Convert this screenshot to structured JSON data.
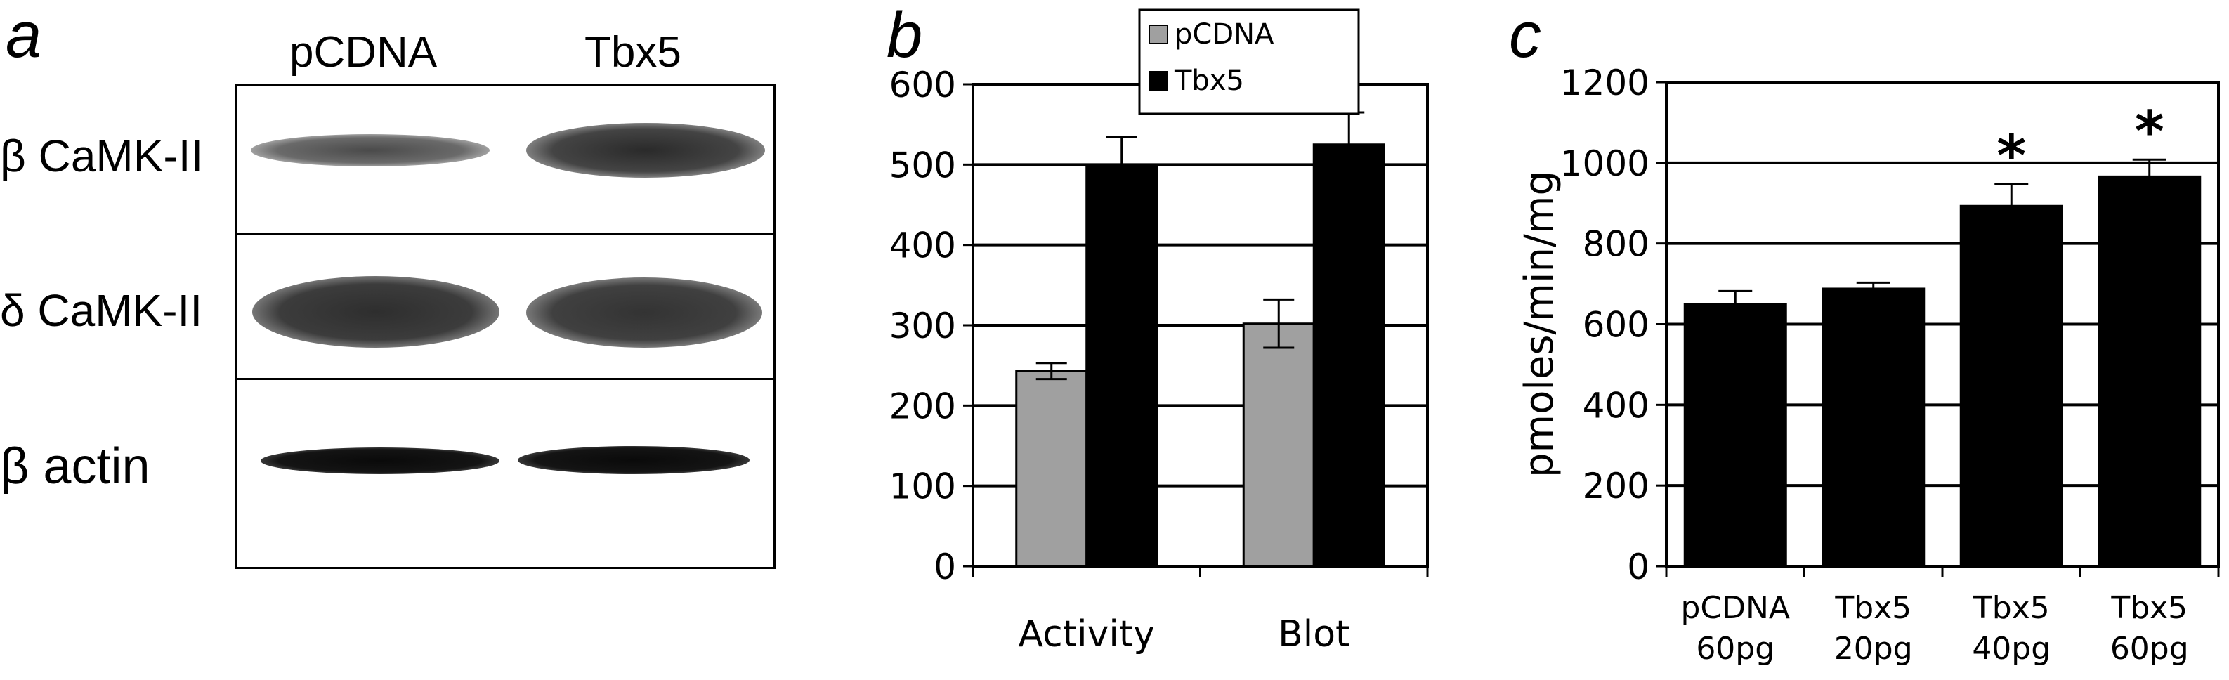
{
  "panel_a": {
    "label": "a",
    "lanes": [
      "pCDNA",
      "Tbx5"
    ],
    "rows": [
      {
        "label": "β CaMK-II"
      },
      {
        "label": "δ CaMK-II"
      },
      {
        "label": "β actin"
      }
    ]
  },
  "panel_b": {
    "label": "b"
  },
  "panel_c": {
    "label": "c"
  },
  "chart_data": [
    {
      "type": "bar",
      "categories": [
        "Activity",
        "Blot"
      ],
      "series": [
        {
          "name": "pCDNA",
          "values": [
            243,
            302
          ],
          "errors": [
            10,
            30
          ],
          "color": "#a0a0a0"
        },
        {
          "name": "Tbx5",
          "values": [
            497,
            525
          ],
          "errors": [
            37,
            40
          ],
          "color": "#000000"
        }
      ],
      "ylim": [
        0,
        600
      ],
      "yticks": [
        "0",
        "100",
        "200",
        "300",
        "400",
        "500",
        "600"
      ],
      "xlabel": "",
      "ylabel": "",
      "grid": true,
      "legend": "top-center"
    },
    {
      "type": "bar",
      "categories": [
        [
          "pCDNA",
          "60pg"
        ],
        [
          "Tbx5",
          "20pg"
        ],
        [
          "Tbx5",
          "40pg"
        ],
        [
          "Tbx5",
          "60pg"
        ]
      ],
      "series": [
        {
          "values": [
            650,
            688,
            893,
            966
          ],
          "errors": [
            32,
            15,
            55,
            42
          ],
          "color": "#000000"
        }
      ],
      "annotations": [
        "",
        "",
        "*",
        "*"
      ],
      "ylim": [
        0,
        1200
      ],
      "yticks": [
        "0",
        "200",
        "400",
        "600",
        "800",
        "1000",
        "1200"
      ],
      "xlabel": "",
      "ylabel": "pmoles/min/mg",
      "grid": true
    }
  ]
}
